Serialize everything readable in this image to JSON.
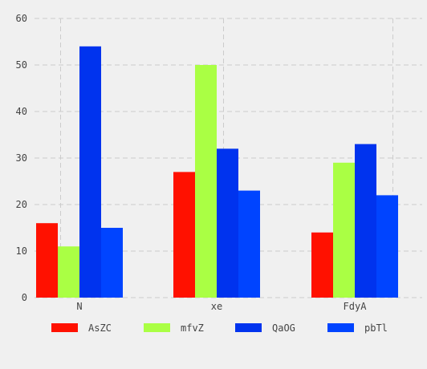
{
  "chart_data": {
    "type": "bar",
    "title": "",
    "xlabel": "",
    "ylabel": "",
    "categories": [
      "N",
      "xe",
      "FdyA"
    ],
    "ylim": [
      0,
      60
    ],
    "yticks": [
      0,
      10,
      20,
      30,
      40,
      50,
      60
    ],
    "grid": true,
    "legend_position": "bottom",
    "series": [
      {
        "name": "AsZC",
        "color": "#ff1100",
        "values": [
          16,
          27,
          14
        ]
      },
      {
        "name": "mfvZ",
        "color": "#aaff44",
        "values": [
          11,
          50,
          29
        ]
      },
      {
        "name": "QaOG",
        "color": "#0033ee",
        "values": [
          54,
          32,
          33
        ]
      },
      {
        "name": "pbTl",
        "color": "#0044ff",
        "values": [
          15,
          23,
          22
        ]
      }
    ]
  }
}
